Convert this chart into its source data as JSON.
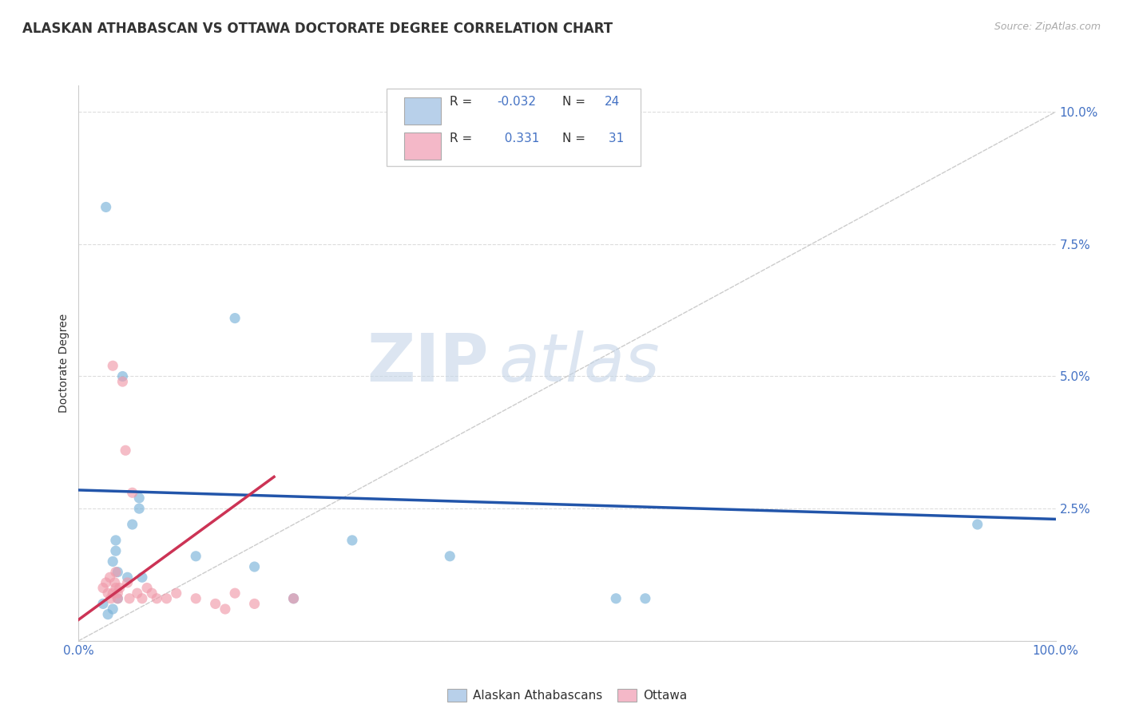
{
  "title": "ALASKAN ATHABASCAN VS OTTAWA DOCTORATE DEGREE CORRELATION CHART",
  "source": "Source: ZipAtlas.com",
  "ylabel": "Doctorate Degree",
  "watermark_zip": "ZIP",
  "watermark_atlas": "atlas",
  "xlim": [
    0.0,
    1.0
  ],
  "ylim": [
    0.0,
    0.105
  ],
  "xtick_positions": [
    0.0,
    0.125,
    0.25,
    0.375,
    0.5,
    0.625,
    0.75,
    0.875,
    1.0
  ],
  "xtick_labels_map": {
    "0.0": "0.0%",
    "1.0": "100.0%"
  },
  "ytick_positions": [
    0.0,
    0.025,
    0.05,
    0.075,
    0.1
  ],
  "ytick_labels": [
    "",
    "2.5%",
    "5.0%",
    "7.5%",
    "10.0%"
  ],
  "blue_scatter_x": [
    0.028,
    0.16,
    0.062,
    0.062,
    0.055,
    0.038,
    0.038,
    0.035,
    0.04,
    0.05,
    0.065,
    0.12,
    0.18,
    0.22,
    0.28,
    0.38,
    0.55,
    0.92,
    0.58,
    0.04,
    0.035,
    0.03,
    0.025,
    0.045
  ],
  "blue_scatter_y": [
    0.082,
    0.061,
    0.027,
    0.025,
    0.022,
    0.019,
    0.017,
    0.015,
    0.013,
    0.012,
    0.012,
    0.016,
    0.014,
    0.008,
    0.019,
    0.016,
    0.008,
    0.022,
    0.008,
    0.008,
    0.006,
    0.005,
    0.007,
    0.05
  ],
  "pink_scatter_x": [
    0.025,
    0.028,
    0.03,
    0.032,
    0.033,
    0.035,
    0.035,
    0.037,
    0.038,
    0.038,
    0.04,
    0.04,
    0.042,
    0.045,
    0.048,
    0.05,
    0.052,
    0.055,
    0.06,
    0.065,
    0.07,
    0.075,
    0.08,
    0.09,
    0.1,
    0.12,
    0.14,
    0.16,
    0.22,
    0.18,
    0.15
  ],
  "pink_scatter_y": [
    0.01,
    0.011,
    0.009,
    0.012,
    0.008,
    0.009,
    0.052,
    0.011,
    0.01,
    0.013,
    0.008,
    0.009,
    0.01,
    0.049,
    0.036,
    0.011,
    0.008,
    0.028,
    0.009,
    0.008,
    0.01,
    0.009,
    0.008,
    0.008,
    0.009,
    0.008,
    0.007,
    0.009,
    0.008,
    0.007,
    0.006
  ],
  "blue_line_x": [
    0.0,
    1.0
  ],
  "blue_line_y": [
    0.0285,
    0.023
  ],
  "pink_line_x": [
    0.0,
    0.2
  ],
  "pink_line_y": [
    0.004,
    0.031
  ],
  "trend_line_x": [
    0.0,
    1.0
  ],
  "trend_line_y": [
    0.0,
    0.1
  ],
  "scatter_alpha": 0.65,
  "scatter_size": 90,
  "blue_scatter_color": "#7ab3d9",
  "pink_scatter_color": "#f09aaa",
  "blue_legend_patch": "#b8d0ea",
  "pink_legend_patch": "#f4b8c8",
  "blue_line_color": "#2255aa",
  "pink_line_color": "#cc3355",
  "trend_line_color": "#cccccc",
  "axis_color": "#4472c4",
  "tick_text_color": "#4472c4",
  "background_color": "#ffffff",
  "grid_color": "#dddddd",
  "title_fontsize": 12,
  "source_fontsize": 9,
  "axis_label_fontsize": 10,
  "tick_fontsize": 11,
  "legend_R_color": "#4472c4",
  "legend_N_color": "#4472c4",
  "blue_R": "-0.032",
  "blue_N": "24",
  "pink_R": "0.331",
  "pink_N": "31",
  "legend_label_blue": "Alaskan Athabascans",
  "legend_label_pink": "Ottawa"
}
